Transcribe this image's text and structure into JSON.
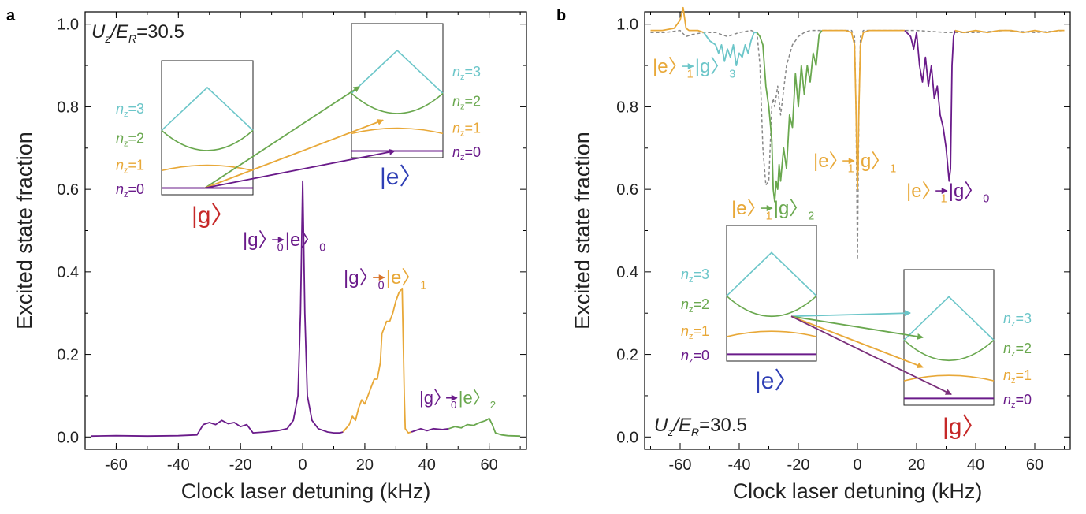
{
  "chart_data": [
    {
      "panel": "a",
      "type": "line",
      "xlabel": "Clock laser detuning (kHz)",
      "ylabel": "Excited state fraction",
      "xlim": [
        -70,
        72
      ],
      "ylim": [
        -0.03,
        1.03
      ],
      "xticks": [
        -60,
        -40,
        -20,
        0,
        20,
        40,
        60
      ],
      "xtick_labels": [
        "-60",
        "-40",
        "-20",
        "0",
        "20",
        "40",
        "60"
      ],
      "yticks": [
        0.0,
        0.2,
        0.4,
        0.6,
        0.8,
        1.0
      ],
      "ytick_labels": [
        "0.0",
        "0.2",
        "0.4",
        "0.6",
        "0.8",
        "1.0"
      ],
      "grid": false,
      "parameter_label": {
        "main": "U",
        "sub1": "z",
        "slash": "/E",
        "sub2": "R",
        "value": "=30.5"
      },
      "series": [
        {
          "color": "#6a1b8a",
          "x": [
            -68,
            -60,
            -50,
            -40,
            -34,
            -32,
            -30,
            -28,
            -26,
            -24,
            -22,
            -20,
            -18,
            -16,
            -12,
            -8,
            -5,
            -3,
            -1.5,
            -0.7,
            0,
            0.7,
            1.5,
            3,
            5,
            8,
            10,
            12,
            13
          ],
          "y": [
            0.002,
            0.003,
            0.002,
            0.003,
            0.005,
            0.03,
            0.035,
            0.03,
            0.04,
            0.032,
            0.035,
            0.025,
            0.03,
            0.01,
            0.012,
            0.015,
            0.02,
            0.04,
            0.1,
            0.3,
            0.62,
            0.3,
            0.1,
            0.04,
            0.02,
            0.012,
            0.01,
            0.01,
            0.012
          ]
        },
        {
          "color": "#e8a838",
          "x": [
            13,
            15,
            16,
            17,
            18,
            19,
            20,
            21,
            22,
            23,
            24,
            25,
            25.5,
            26,
            27,
            28,
            29,
            30,
            31,
            32,
            32.7,
            33,
            34,
            35
          ],
          "y": [
            0.012,
            0.03,
            0.05,
            0.04,
            0.07,
            0.09,
            0.08,
            0.1,
            0.12,
            0.14,
            0.14,
            0.18,
            0.25,
            0.26,
            0.28,
            0.28,
            0.3,
            0.33,
            0.35,
            0.36,
            0.1,
            0.02,
            0.01,
            0.012
          ]
        },
        {
          "color": "#6a1b8a",
          "x": [
            35,
            38,
            40,
            42,
            45,
            47
          ],
          "y": [
            0.012,
            0.02,
            0.015,
            0.02,
            0.018,
            0.02
          ]
        },
        {
          "color": "#6aa84f",
          "x": [
            47,
            49,
            51,
            53,
            55,
            57,
            59,
            60,
            61,
            62,
            64,
            66,
            70
          ],
          "y": [
            0.02,
            0.025,
            0.022,
            0.03,
            0.028,
            0.035,
            0.04,
            0.045,
            0.03,
            0.01,
            0.005,
            0.003,
            0.002
          ]
        }
      ],
      "annotations": [
        {
          "from": "g",
          "from_sub": "0",
          "to": "e",
          "to_sub": "0",
          "from_color": "#6a1b8a",
          "to_color": "#6a1b8a",
          "arrow_color": "#6a1b8a"
        },
        {
          "from": "g",
          "from_sub": "0",
          "to": "e",
          "to_sub": "1",
          "from_color": "#6a1b8a",
          "to_color": "#e8a838",
          "arrow_color": "#d9742a"
        },
        {
          "from": "g",
          "from_sub": "0",
          "to": "e",
          "to_sub": "2",
          "from_color": "#6a1b8a",
          "to_color": "#6aa84f",
          "arrow_color": "#6a1b8a"
        }
      ],
      "inset_ground": {
        "state_label": "g",
        "label_color": "#c62828",
        "levels": [
          {
            "n": "3",
            "color": "#6cc6c9"
          },
          {
            "n": "2",
            "color": "#6aa84f"
          },
          {
            "n": "1",
            "color": "#e8a838"
          },
          {
            "n": "0",
            "color": "#6a1b8a"
          }
        ]
      },
      "inset_excited": {
        "state_label": "e",
        "label_color": "#2f3fb5",
        "levels": [
          {
            "n": "3",
            "color": "#6cc6c9"
          },
          {
            "n": "2",
            "color": "#6aa84f"
          },
          {
            "n": "1",
            "color": "#e8a838"
          },
          {
            "n": "0",
            "color": "#6a1b8a"
          }
        ]
      }
    },
    {
      "panel": "b",
      "type": "line",
      "xlabel": "Clock laser detuning (kHz)",
      "ylabel": "Excited state fraction",
      "xlim": [
        -72,
        72
      ],
      "ylim": [
        -0.03,
        1.03
      ],
      "xticks": [
        -60,
        -40,
        -20,
        0,
        20,
        40,
        60
      ],
      "xtick_labels": [
        "-60",
        "-40",
        "-20",
        "0",
        "20",
        "40",
        "60"
      ],
      "yticks": [
        0.0,
        0.2,
        0.4,
        0.6,
        0.8,
        1.0
      ],
      "ytick_labels": [
        "0.0",
        "0.2",
        "0.4",
        "0.6",
        "0.8",
        "1.0"
      ],
      "grid": false,
      "parameter_label": {
        "main": "U",
        "sub1": "z",
        "slash": "/E",
        "sub2": "R",
        "value": "=30.5"
      },
      "series": [
        {
          "color": "#888888",
          "dashed": true,
          "x": [
            -70,
            -65,
            -60,
            -58,
            -56,
            -52,
            -48,
            -44,
            -40,
            -36,
            -34,
            -33,
            -32,
            -31,
            -30,
            -29,
            -28.5,
            -28,
            -27,
            -26,
            -24,
            -22,
            -20,
            -18,
            -16,
            -12,
            -8,
            -4,
            -2,
            -1,
            -0.5,
            0,
            0.5,
            1,
            2,
            4,
            8,
            12,
            20,
            30,
            40,
            50,
            60,
            70
          ],
          "y": [
            0.98,
            0.98,
            0.985,
            0.97,
            0.975,
            0.98,
            0.98,
            0.97,
            0.98,
            0.985,
            0.98,
            0.9,
            0.7,
            0.61,
            0.62,
            0.8,
            0.82,
            0.8,
            0.85,
            0.78,
            0.9,
            0.95,
            0.97,
            0.98,
            0.985,
            0.985,
            0.985,
            0.985,
            0.985,
            0.97,
            0.8,
            0.43,
            0.8,
            0.97,
            0.985,
            0.985,
            0.985,
            0.985,
            0.985,
            0.98,
            0.98,
            0.985,
            0.98,
            0.985
          ]
        },
        {
          "color": "#e8a838",
          "x": [
            -70,
            -66,
            -62,
            -60,
            -59,
            -58,
            -57,
            -56,
            -54,
            -52
          ],
          "y": [
            0.985,
            0.985,
            0.99,
            1.01,
            1.04,
            0.99,
            0.985,
            0.985,
            0.985,
            0.98
          ]
        },
        {
          "color": "#6cc6c9",
          "x": [
            -52,
            -50,
            -48,
            -47,
            -46,
            -45,
            -44,
            -43,
            -42,
            -41,
            -40,
            -39,
            -38,
            -37,
            -36,
            -35,
            -34
          ],
          "y": [
            0.98,
            0.96,
            0.95,
            0.93,
            0.95,
            0.91,
            0.94,
            0.92,
            0.95,
            0.9,
            0.93,
            0.92,
            0.95,
            0.93,
            0.96,
            0.98,
            0.98
          ]
        },
        {
          "color": "#6aa84f",
          "x": [
            -34,
            -33,
            -32,
            -31,
            -30,
            -29,
            -28.5,
            -28,
            -27.5,
            -27,
            -26.5,
            -26,
            -25,
            -24,
            -23,
            -22,
            -21,
            -20,
            -19,
            -18,
            -17,
            -16,
            -15,
            -14,
            -13,
            -12
          ],
          "y": [
            0.98,
            0.97,
            0.95,
            0.85,
            0.8,
            0.72,
            0.6,
            0.57,
            0.62,
            0.6,
            0.66,
            0.62,
            0.7,
            0.65,
            0.78,
            0.75,
            0.88,
            0.8,
            0.9,
            0.83,
            0.9,
            0.86,
            0.93,
            0.9,
            0.975,
            0.985
          ]
        },
        {
          "color": "#e8a838",
          "x": [
            -12,
            -10,
            -8,
            -6,
            -4,
            -2,
            -1,
            -0.5,
            0,
            0.5,
            1,
            2,
            4,
            8,
            12,
            16
          ],
          "y": [
            0.985,
            0.985,
            0.985,
            0.985,
            0.985,
            0.98,
            0.95,
            0.8,
            0.6,
            0.8,
            0.95,
            0.98,
            0.985,
            0.985,
            0.985,
            0.985
          ]
        },
        {
          "color": "#6a1b8a",
          "x": [
            16,
            18,
            19,
            20,
            21,
            22,
            23,
            24,
            25,
            26,
            27,
            28,
            29,
            30,
            31,
            31.5,
            32,
            32.5,
            33
          ],
          "y": [
            0.985,
            0.97,
            0.94,
            0.98,
            0.9,
            0.86,
            0.92,
            0.85,
            0.9,
            0.82,
            0.85,
            0.78,
            0.75,
            0.7,
            0.62,
            0.65,
            0.9,
            0.97,
            0.985
          ]
        },
        {
          "color": "#e8a838",
          "x": [
            33,
            36,
            40,
            44,
            48,
            52,
            56,
            60,
            64,
            68,
            70
          ],
          "y": [
            0.985,
            0.98,
            0.985,
            0.98,
            0.985,
            0.985,
            0.98,
            0.985,
            0.98,
            0.985,
            0.985
          ]
        }
      ],
      "annotations": [
        {
          "from": "e",
          "from_sub": "1",
          "to": "g",
          "to_sub": "3",
          "from_color": "#e8a838",
          "to_color": "#6cc6c9",
          "arrow_color": "#6cc6c9"
        },
        {
          "from": "e",
          "from_sub": "1",
          "to": "g",
          "to_sub": "2",
          "from_color": "#e8a838",
          "to_color": "#6aa84f",
          "arrow_color": "#6aa84f"
        },
        {
          "from": "e",
          "from_sub": "1",
          "to": "g",
          "to_sub": "1",
          "from_color": "#e8a838",
          "to_color": "#e8a838",
          "arrow_color": "#e8a838"
        },
        {
          "from": "e",
          "from_sub": "1",
          "to": "g",
          "to_sub": "0",
          "from_color": "#e8a838",
          "to_color": "#6a1b8a",
          "arrow_color": "#6a1b8a"
        }
      ],
      "inset_excited": {
        "state_label": "e",
        "label_color": "#2f3fb5",
        "levels": [
          {
            "n": "3",
            "color": "#6cc6c9"
          },
          {
            "n": "2",
            "color": "#6aa84f"
          },
          {
            "n": "1",
            "color": "#e8a838"
          },
          {
            "n": "0",
            "color": "#6a1b8a"
          }
        ]
      },
      "inset_ground": {
        "state_label": "g",
        "label_color": "#c62828",
        "levels": [
          {
            "n": "3",
            "color": "#6cc6c9"
          },
          {
            "n": "2",
            "color": "#6aa84f"
          },
          {
            "n": "1",
            "color": "#e8a838"
          },
          {
            "n": "0",
            "color": "#6a1b8a"
          }
        ]
      }
    }
  ]
}
